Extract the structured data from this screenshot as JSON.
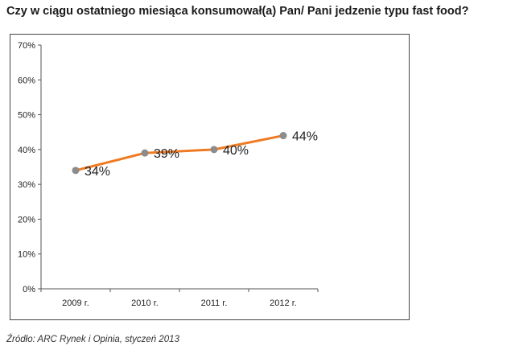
{
  "title": "Czy w ciągu ostatniego miesiąca konsumował(a) Pan/ Pani jedzenie typu fast food?",
  "source": "Źródło: ARC Rynek i Opinia, styczeń 2013",
  "chart_data": {
    "type": "line",
    "title": "Czy w ciągu ostatniego miesiąca konsumował(a) Pan/ Pani jedzenie typu fast food?",
    "categories": [
      "2009 r.",
      "2010 r.",
      "2011 r.",
      "2012 r."
    ],
    "values": [
      34,
      39,
      40,
      44
    ],
    "data_labels": [
      "34%",
      "39%",
      "40%",
      "44%"
    ],
    "y_ticks": [
      "0%",
      "10%",
      "20%",
      "30%",
      "40%",
      "50%",
      "60%",
      "70%"
    ],
    "ylim": [
      0,
      70
    ],
    "xlabel": "",
    "ylabel": "",
    "grid": false,
    "colors": {
      "line": "#f07a22",
      "marker": "#8c8c8c",
      "axis": "#555555"
    }
  }
}
